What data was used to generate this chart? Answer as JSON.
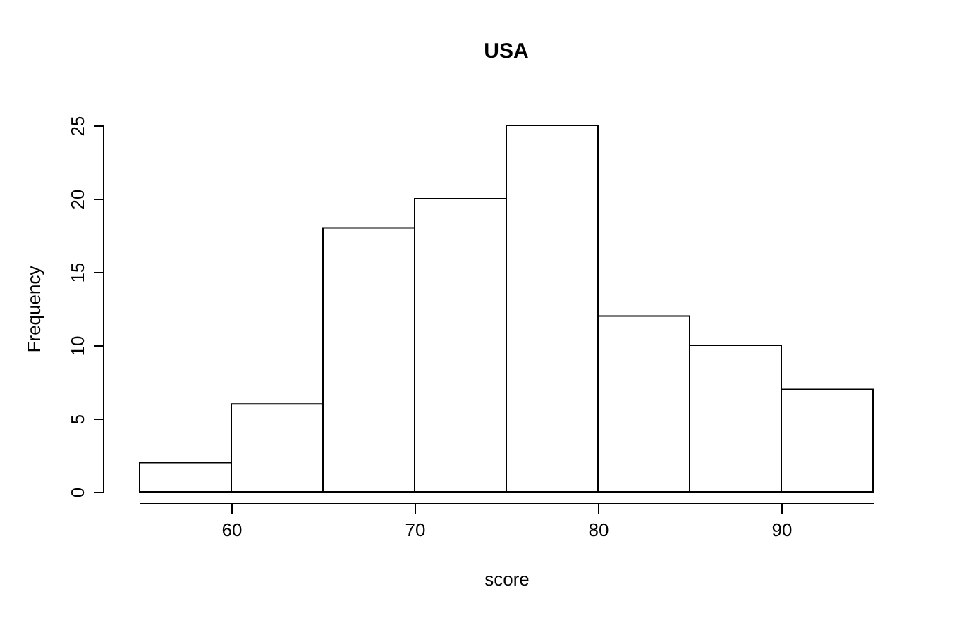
{
  "chart_data": {
    "type": "histogram",
    "title": "USA",
    "xlabel": "score",
    "ylabel": "Frequency",
    "bins": [
      55,
      60,
      65,
      70,
      75,
      80,
      85,
      90,
      95
    ],
    "values": [
      2,
      6,
      18,
      20,
      25,
      12,
      10,
      7
    ],
    "color": "#ffffff",
    "xlim": [
      55,
      95
    ],
    "xticks": [
      60,
      70,
      80,
      90
    ],
    "ylim": [
      0,
      25
    ],
    "yticks": [
      0,
      5,
      10,
      15,
      20,
      25
    ],
    "grid": false
  }
}
